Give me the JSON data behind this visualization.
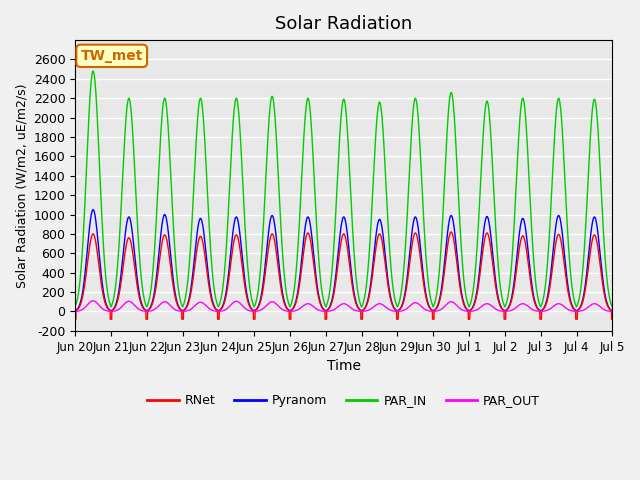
{
  "title": "Solar Radiation",
  "ylabel": "Solar Radiation (W/m2, uE/m2/s)",
  "xlabel": "Time",
  "ylim": [
    -200,
    2800
  ],
  "yticks": [
    -200,
    0,
    200,
    400,
    600,
    800,
    1000,
    1200,
    1400,
    1600,
    1800,
    2000,
    2200,
    2400,
    2600
  ],
  "xtick_labels": [
    "Jun 20",
    "Jun 21",
    "Jun 22",
    "Jun 23",
    "Jun 24",
    "Jun 25",
    "Jun 26",
    "Jun 27",
    "Jun 28",
    "Jun 29",
    "Jun 30",
    "Jul 1",
    "Jul 2",
    "Jul 3",
    "Jul 4",
    "Jul 5"
  ],
  "colors": {
    "RNet": "#ff0000",
    "Pyranom": "#0000ff",
    "PAR_IN": "#00cc00",
    "PAR_OUT": "#ff00ff"
  },
  "annotation_text": "TW_met",
  "annotation_color": "#cc6600",
  "background_color": "#e8e8e8",
  "grid_color": "#ffffff",
  "n_days": 15,
  "PAR_IN_peaks": [
    2480,
    2200,
    2200,
    2200,
    2200,
    2220,
    2200,
    2190,
    2160,
    2200,
    2260,
    2170,
    2200,
    2200,
    2190
  ],
  "Pyranom_peaks": [
    1050,
    975,
    1000,
    960,
    975,
    990,
    975,
    975,
    950,
    975,
    990,
    980,
    960,
    990,
    975
  ],
  "RNet_peaks": [
    800,
    760,
    790,
    775,
    790,
    800,
    810,
    800,
    800,
    810,
    820,
    810,
    780,
    795,
    790
  ],
  "PAR_OUT_peaks": [
    110,
    105,
    100,
    95,
    105,
    100,
    80,
    80,
    80,
    90,
    100,
    80,
    80,
    80,
    80
  ],
  "night_val_RNet": -80,
  "linewidth": 1.0
}
